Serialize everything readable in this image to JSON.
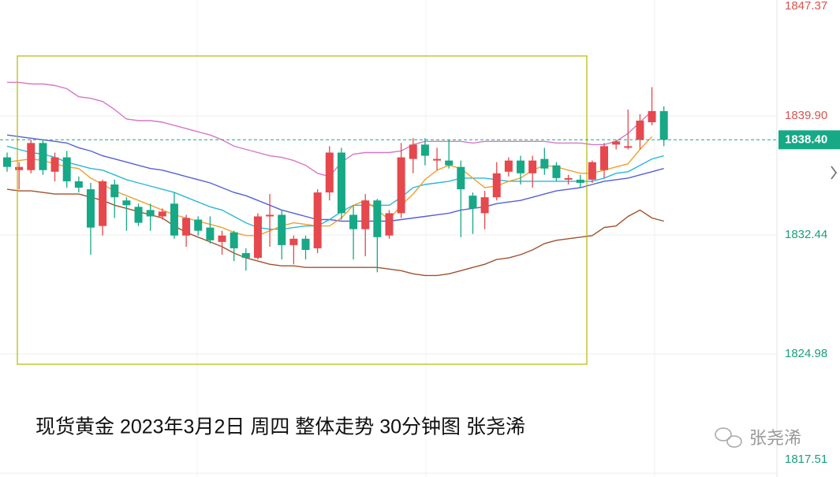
{
  "chart_data": {
    "type": "candlestick",
    "caption": "现货黄金 2023年3月2日 周四 整体走势 30分钟图  张尧浠",
    "watermark": "张尧浠",
    "ylim": [
      1817.27,
      1847.16
    ],
    "yticks": [
      1847.37,
      {
        "value": 1839.9,
        "label": "1839.90"
      },
      1832.44,
      1824.98,
      1817.51
    ],
    "current_price": {
      "value": 1838.4,
      "label": "1838.40"
    },
    "grid": true,
    "candles": {
      "up_color": "#e5484d",
      "down_color": "#17a886",
      "open": [
        1837.3,
        1836.5,
        1836.5,
        1838.2,
        1836.4,
        1837.3,
        1835.8,
        1835.3,
        1833.0,
        1835.6,
        1834.6,
        1834.2,
        1834.0,
        1833.6,
        1834.4,
        1832.4,
        1833.4,
        1832.9,
        1832.0,
        1832.6,
        1831.3,
        1831.0,
        1833.6,
        1833.7,
        1831.8,
        1832.2,
        1831.6,
        1835.1,
        1837.6,
        1833.7,
        1832.8,
        1834.6,
        1832.4,
        1833.8,
        1837.2,
        1838.1,
        1837.1,
        1837.1,
        1836.7,
        1834.9,
        1833.8,
        1834.8,
        1836.4,
        1837.1,
        1836.3,
        1837.2,
        1836.8,
        1835.9,
        1835.9,
        1835.9,
        1836.5,
        1838.1,
        1837.9,
        1838.4,
        1839.5,
        1840.2
      ],
      "high": [
        1837.6,
        1837.0,
        1838.4,
        1838.4,
        1837.6,
        1837.7,
        1836.1,
        1835.7,
        1835.9,
        1835.9,
        1834.8,
        1834.4,
        1834.4,
        1834.1,
        1835.1,
        1833.7,
        1833.6,
        1833.6,
        1832.7,
        1832.7,
        1831.6,
        1833.8,
        1835.0,
        1834.0,
        1832.4,
        1832.4,
        1835.3,
        1838.0,
        1837.9,
        1834.3,
        1835.0,
        1834.7,
        1834.0,
        1838.2,
        1838.5,
        1838.5,
        1837.9,
        1838.4,
        1837.1,
        1835.1,
        1835.2,
        1837.0,
        1837.3,
        1837.4,
        1837.4,
        1837.9,
        1837.0,
        1836.2,
        1836.2,
        1837.1,
        1838.2,
        1838.4,
        1840.3,
        1840.0,
        1841.7,
        1840.5
      ],
      "low": [
        1836.4,
        1835.3,
        1836.3,
        1836.2,
        1835.8,
        1835.4,
        1835.1,
        1831.2,
        1832.4,
        1833.5,
        1832.7,
        1833.0,
        1832.7,
        1833.4,
        1832.2,
        1831.7,
        1832.4,
        1831.9,
        1831.2,
        1830.8,
        1830.2,
        1830.9,
        1831.7,
        1830.9,
        1830.6,
        1830.9,
        1831.3,
        1834.6,
        1833.4,
        1830.9,
        1831.1,
        1830.1,
        1832.2,
        1833.5,
        1836.3,
        1836.8,
        1836.5,
        1836.6,
        1832.3,
        1832.5,
        1832.8,
        1834.6,
        1836.1,
        1835.6,
        1835.4,
        1836.2,
        1835.8,
        1835.6,
        1835.4,
        1835.7,
        1836.0,
        1837.8,
        1837.8,
        1837.8,
        1839.3,
        1838.0
      ],
      "close": [
        1836.7,
        1836.7,
        1838.2,
        1836.5,
        1837.3,
        1835.8,
        1835.4,
        1832.9,
        1835.8,
        1834.8,
        1834.3,
        1833.2,
        1833.6,
        1833.9,
        1832.4,
        1833.5,
        1832.7,
        1832.1,
        1832.4,
        1831.6,
        1831.0,
        1833.6,
        1833.7,
        1831.8,
        1832.2,
        1831.5,
        1835.1,
        1837.6,
        1833.8,
        1832.8,
        1834.6,
        1832.3,
        1833.8,
        1837.3,
        1838.1,
        1837.4,
        1837.2,
        1836.8,
        1835.3,
        1834.1,
        1834.8,
        1836.3,
        1837.1,
        1836.3,
        1837.1,
        1836.6,
        1836.0,
        1836.0,
        1835.7,
        1837.0,
        1838.0,
        1838.3,
        1838.0,
        1839.6,
        1840.2,
        1838.4
      ]
    },
    "lines": [
      {
        "color": "#d677c9",
        "values": [
          1842.0,
          1842.0,
          1841.9,
          1841.9,
          1841.8,
          1841.6,
          1841.1,
          1841.0,
          1840.8,
          1840.3,
          1839.7,
          1839.6,
          1839.6,
          1839.5,
          1839.3,
          1839.1,
          1838.9,
          1838.7,
          1838.4,
          1838.0,
          1837.8,
          1837.6,
          1837.4,
          1837.3,
          1837.1,
          1836.8,
          1836.3,
          1836.1,
          1837.0,
          1837.5,
          1837.6,
          1837.6,
          1837.6,
          1837.7,
          1838.1,
          1838.3,
          1838.3,
          1838.3,
          1838.3,
          1838.2,
          1838.3,
          1838.3,
          1838.3,
          1838.3,
          1838.3,
          1838.3,
          1838.2,
          1838.2,
          1838.2,
          1838.1,
          1838.1,
          1838.3,
          1838.8,
          1839.5,
          1840.2,
          null
        ]
      },
      {
        "color": "#a0522d",
        "values": [
          1835.3,
          1835.2,
          1835.2,
          1835.1,
          1835.0,
          1835.0,
          1835.0,
          1834.8,
          1834.6,
          1834.3,
          1834.1,
          1833.9,
          1833.7,
          1833.5,
          1833.0,
          1832.6,
          1832.3,
          1832.0,
          1831.7,
          1831.3,
          1831.0,
          1830.8,
          1830.6,
          1830.5,
          1830.5,
          1830.4,
          1830.4,
          1830.4,
          1830.4,
          1830.4,
          1830.4,
          1830.4,
          1830.3,
          1830.2,
          1830.0,
          1829.9,
          1829.9,
          1830.0,
          1830.2,
          1830.4,
          1830.6,
          1830.9,
          1831.0,
          1831.2,
          1831.5,
          1831.9,
          1832.1,
          1832.2,
          1832.3,
          1832.4,
          1832.9,
          1833.0,
          1833.6,
          1834.0,
          1833.5,
          1833.3
        ]
      },
      {
        "color": "#5560d8",
        "values": [
          1838.7,
          1838.6,
          1838.5,
          1838.4,
          1838.3,
          1838.2,
          1837.9,
          1837.7,
          1837.4,
          1837.2,
          1837.0,
          1836.8,
          1836.6,
          1836.5,
          1836.3,
          1836.1,
          1835.9,
          1835.7,
          1835.4,
          1835.1,
          1834.9,
          1834.6,
          1834.3,
          1834.0,
          1833.8,
          1833.6,
          1833.4,
          1833.4,
          1833.3,
          1833.3,
          1833.3,
          1833.3,
          1833.3,
          1833.4,
          1833.5,
          1833.6,
          1833.7,
          1833.8,
          1834.0,
          1834.1,
          1834.2,
          1834.4,
          1834.5,
          1834.6,
          1834.8,
          1835.0,
          1835.2,
          1835.3,
          1835.4,
          1835.6,
          1835.8,
          1835.9,
          1836.0,
          1836.2,
          1836.4,
          1836.6
        ]
      },
      {
        "color": "#2ab8d8",
        "values": [
          1838.0,
          1837.8,
          1837.6,
          1837.5,
          1837.3,
          1837.0,
          1836.8,
          1836.6,
          1836.5,
          1836.2,
          1835.9,
          1835.7,
          1835.5,
          1835.3,
          1835.1,
          1834.8,
          1834.5,
          1834.2,
          1834.0,
          1833.6,
          1833.2,
          1832.9,
          1832.8,
          1832.8,
          1832.9,
          1833.0,
          1833.0,
          1833.4,
          1833.9,
          1834.3,
          1834.3,
          1834.3,
          1834.3,
          1834.8,
          1835.4,
          1835.6,
          1835.7,
          1835.8,
          1836.0,
          1836.0,
          1836.0,
          1835.9,
          1835.8,
          1835.8,
          1835.8,
          1835.8,
          1835.8,
          1835.8,
          1835.8,
          1835.8,
          1836.0,
          1836.3,
          1836.4,
          1836.8,
          1837.2,
          1837.4
        ]
      },
      {
        "color": "#f0a030",
        "values": [
          1837.0,
          1837.1,
          1837.2,
          1837.1,
          1836.9,
          1836.7,
          1836.6,
          1836.0,
          1835.6,
          1835.2,
          1834.9,
          1834.6,
          1834.3,
          1834.0,
          1833.7,
          1833.5,
          1833.3,
          1833.1,
          1832.9,
          1832.6,
          1832.4,
          1832.4,
          1832.7,
          1833.0,
          1833.2,
          1833.1,
          1833.0,
          1833.0,
          1833.5,
          1834.3,
          1834.6,
          1834.0,
          1833.4,
          1834.3,
          1835.0,
          1835.9,
          1836.5,
          1836.8,
          1836.6,
          1836.0,
          1835.4,
          1835.5,
          1835.8,
          1836.0,
          1836.5,
          1836.8,
          1836.7,
          1836.5,
          1836.3,
          1836.3,
          1836.5,
          1836.7,
          1836.9,
          1837.8,
          1838.6,
          null
        ]
      }
    ]
  }
}
